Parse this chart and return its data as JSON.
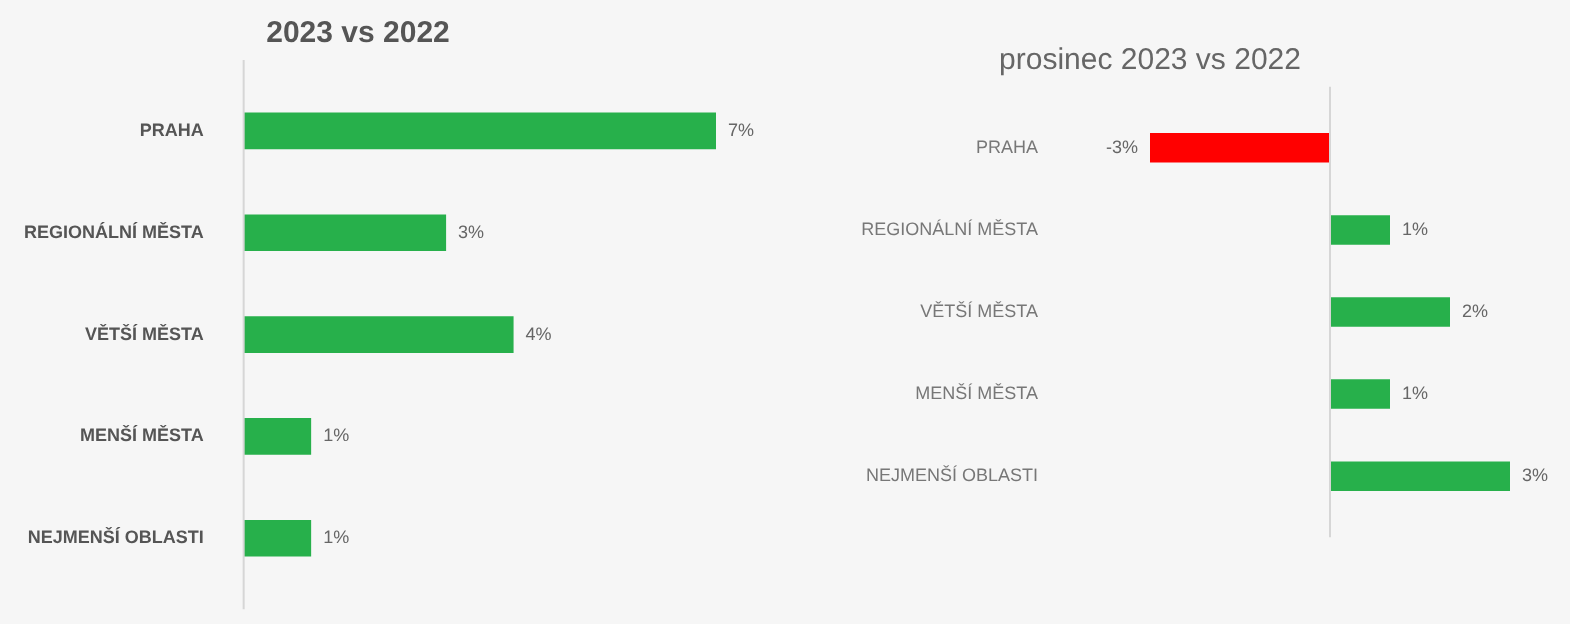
{
  "chart_data": [
    {
      "type": "bar",
      "orientation": "horizontal",
      "title": "2023 vs 2022",
      "categories": [
        "PRAHA",
        "REGIONÁLNÍ MĚSTA",
        "VĚTŠÍ MĚSTA",
        "MENŠÍ MĚSTA",
        "NEJMENŠÍ OBLASTI"
      ],
      "values": [
        7,
        3,
        4,
        1,
        1
      ],
      "colors": [
        "#27b04b",
        "#27b04b",
        "#27b04b",
        "#27b04b",
        "#27b04b"
      ],
      "value_labels": [
        "7%",
        "3%",
        "4%",
        "1%",
        "1%"
      ]
    },
    {
      "type": "bar",
      "orientation": "horizontal",
      "title": "prosinec 2023 vs 2022",
      "categories": [
        "PRAHA",
        "REGIONÁLNÍ MĚSTA",
        "VĚTŠÍ MĚSTA",
        "MENŠÍ MĚSTA",
        "NEJMENŠÍ OBLASTI"
      ],
      "values": [
        -3,
        1,
        2,
        1,
        3
      ],
      "colors": [
        "#ff0000",
        "#27b04b",
        "#27b04b",
        "#27b04b",
        "#27b04b"
      ],
      "value_labels": [
        "-3%",
        "1%",
        "2%",
        "1%",
        "3%"
      ]
    }
  ]
}
